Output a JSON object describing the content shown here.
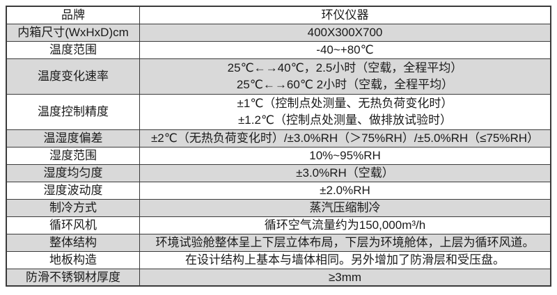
{
  "table": {
    "title_semantic": "environmental-test-chamber-spec-table",
    "stripe_color": "#d9d9d9",
    "border_color": "#3a3a3a",
    "rows": [
      {
        "label": "品牌",
        "lines": [
          "环仪仪器"
        ]
      },
      {
        "label": "内箱尺寸(WxHxD)cm",
        "lines": [
          "400X300X700"
        ]
      },
      {
        "label": "温度范围",
        "lines": [
          "-40~+80℃"
        ]
      },
      {
        "label": "温度变化速率",
        "lines": [
          "25℃←→40℃，2.5小时（空载，全程平均）",
          "25℃←→60℃ 2小时（空载，全程平均）"
        ]
      },
      {
        "label": "温度控制精度",
        "lines": [
          "±1℃（控制点处测量、无热负荷变化时）",
          "±1.2℃（控制点处测量、做排放试验时）"
        ]
      },
      {
        "label": "温湿度偏差",
        "lines": [
          "±2℃（无热负荷变化时）/±3.0%RH（＞75%RH）/±5.0%RH（≤75%RH）"
        ]
      },
      {
        "label": "湿度范围",
        "lines": [
          "10%~95%RH"
        ]
      },
      {
        "label": "湿度均匀度",
        "lines": [
          "±3.0%RH（空载）"
        ]
      },
      {
        "label": "湿度波动度",
        "lines": [
          "±2.0%RH"
        ]
      },
      {
        "label": "制冷方式",
        "lines": [
          "蒸汽压缩制冷"
        ]
      },
      {
        "label": "循环风机",
        "lines": [
          "循环空气流量约为150,000m³/h"
        ]
      },
      {
        "label": "整体结构",
        "lines": [
          "环境试验舱整体呈上下层立体布局，下层为环境舱体，上层为循环风道。"
        ]
      },
      {
        "label": "地板构造",
        "lines": [
          "在设计结构上基本与墙体相同。另外增加了防滑层和受压盘。"
        ]
      },
      {
        "label": "防滑不锈钢材厚度",
        "lines": [
          "≥3mm"
        ]
      }
    ]
  }
}
